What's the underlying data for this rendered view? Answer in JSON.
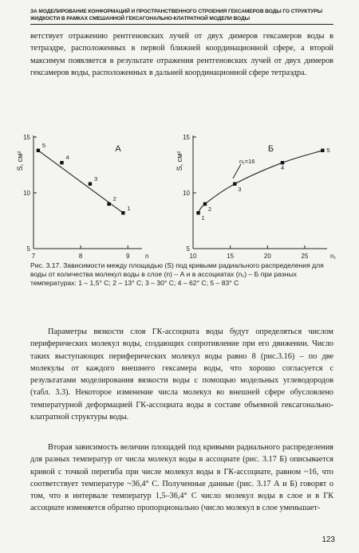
{
  "page": {
    "running_head": "ЗА МОДЕЛИРОВАНИЕ КОНФОРМАЦИЙ И ПРОСТРАНСТВЕННОГО СТРОЕНИЯ ГЕКСАМЕРОВ ВОДЫ ГО СТРУКТУРЫ ЖИДКОСТИ В РАМКАХ СМЕШАННОЙ ГЕКСАГОНАЛЬНО-КЛАТРАТНОЙ МОДЕЛИ ВОДЫ",
    "page_number": "123",
    "para_top": "ветствует отражению рентгеновских лучей от двух димеров гексамеров воды в тетраэдре, расположенных в первой ближней координационной сфере, а второй максимум появляется в результате отражения рентгеновских лучей от двух димеров гексамеров воды, расположенных в дальней координационной сфере тетраэдра.",
    "caption": "Рис. 3.17. Зависимости между площадью (S) под кривыми радиального распределения для воды от количества молекул воды в слое (n) – А и в ассоциатах (n₁) – Б при разных температурах: 1 – 1,5° С; 2 – 13° С; 3 – 30° С; 4 – 62° С; 5 – 83° С",
    "para_mid": "Параметры вязкости слоя ГК-ассоциата воды будут определяться числом периферических молекул воды, создающих сопротивление при его движении. Число таких выступающих периферических молекул воды равно 8 (рис.3.16) – по две молекулы от каждого внешнего гексамера воды, что хорошо согласуется с результатами моделирования вязкости воды с помощью модельных углеводородов (табл. 3.3). Некоторое изменение числа молекул во внешней сфере обусловлено температурной деформацией ГК-ассоциата воды в составе объемной гексагонально-клатратной структуры воды.",
    "para_bot": "Вторая зависимость величин площадей под кривыми радиального распределения для разных температур от числа молекул воды в ассоциате (рис. 3.17 Б) описывается кривой с точкой перегиба при числе молекул воды в ГК-ассоциате, равном ~16, что соответствует температуре ~36,4° С. Полученные данные (рис. 3.17 А и Б) говорят о том, что в интервале температур 1,5–36,4° С число молекул воды в слое и в ГК ассоциате изменяется обратно пропорционально (число молекул в слое уменьшает-"
  },
  "chart_data": [
    {
      "type": "line",
      "title": "А",
      "ylabel": "S, cм²",
      "xlabel": "n",
      "xlim": [
        7,
        9.3
      ],
      "ylim": [
        5,
        15
      ],
      "xticks": [
        "7",
        "8",
        "9"
      ],
      "yticks": [
        "5",
        "10",
        "15"
      ],
      "x": [
        8.9,
        8.6,
        8.2,
        7.6,
        7.1
      ],
      "values": [
        8.2,
        9.0,
        10.8,
        12.7,
        13.8
      ],
      "point_labels": [
        "1",
        "2",
        "3",
        "4",
        "5"
      ]
    },
    {
      "type": "line",
      "title": "Б",
      "ylabel": "S, cм²",
      "xlabel": "n₁",
      "xlim": [
        10,
        28
      ],
      "ylim": [
        5,
        15
      ],
      "xticks": [
        "10",
        "15",
        "20",
        "25"
      ],
      "yticks": [
        "5",
        "10",
        "15"
      ],
      "x": [
        10.7,
        11.6,
        15.6,
        22.0,
        27.4
      ],
      "values": [
        8.2,
        9.0,
        10.8,
        12.7,
        13.8
      ],
      "point_labels": [
        "1",
        "2",
        "3",
        "4",
        "5"
      ],
      "annotation": "n₁=16"
    }
  ]
}
